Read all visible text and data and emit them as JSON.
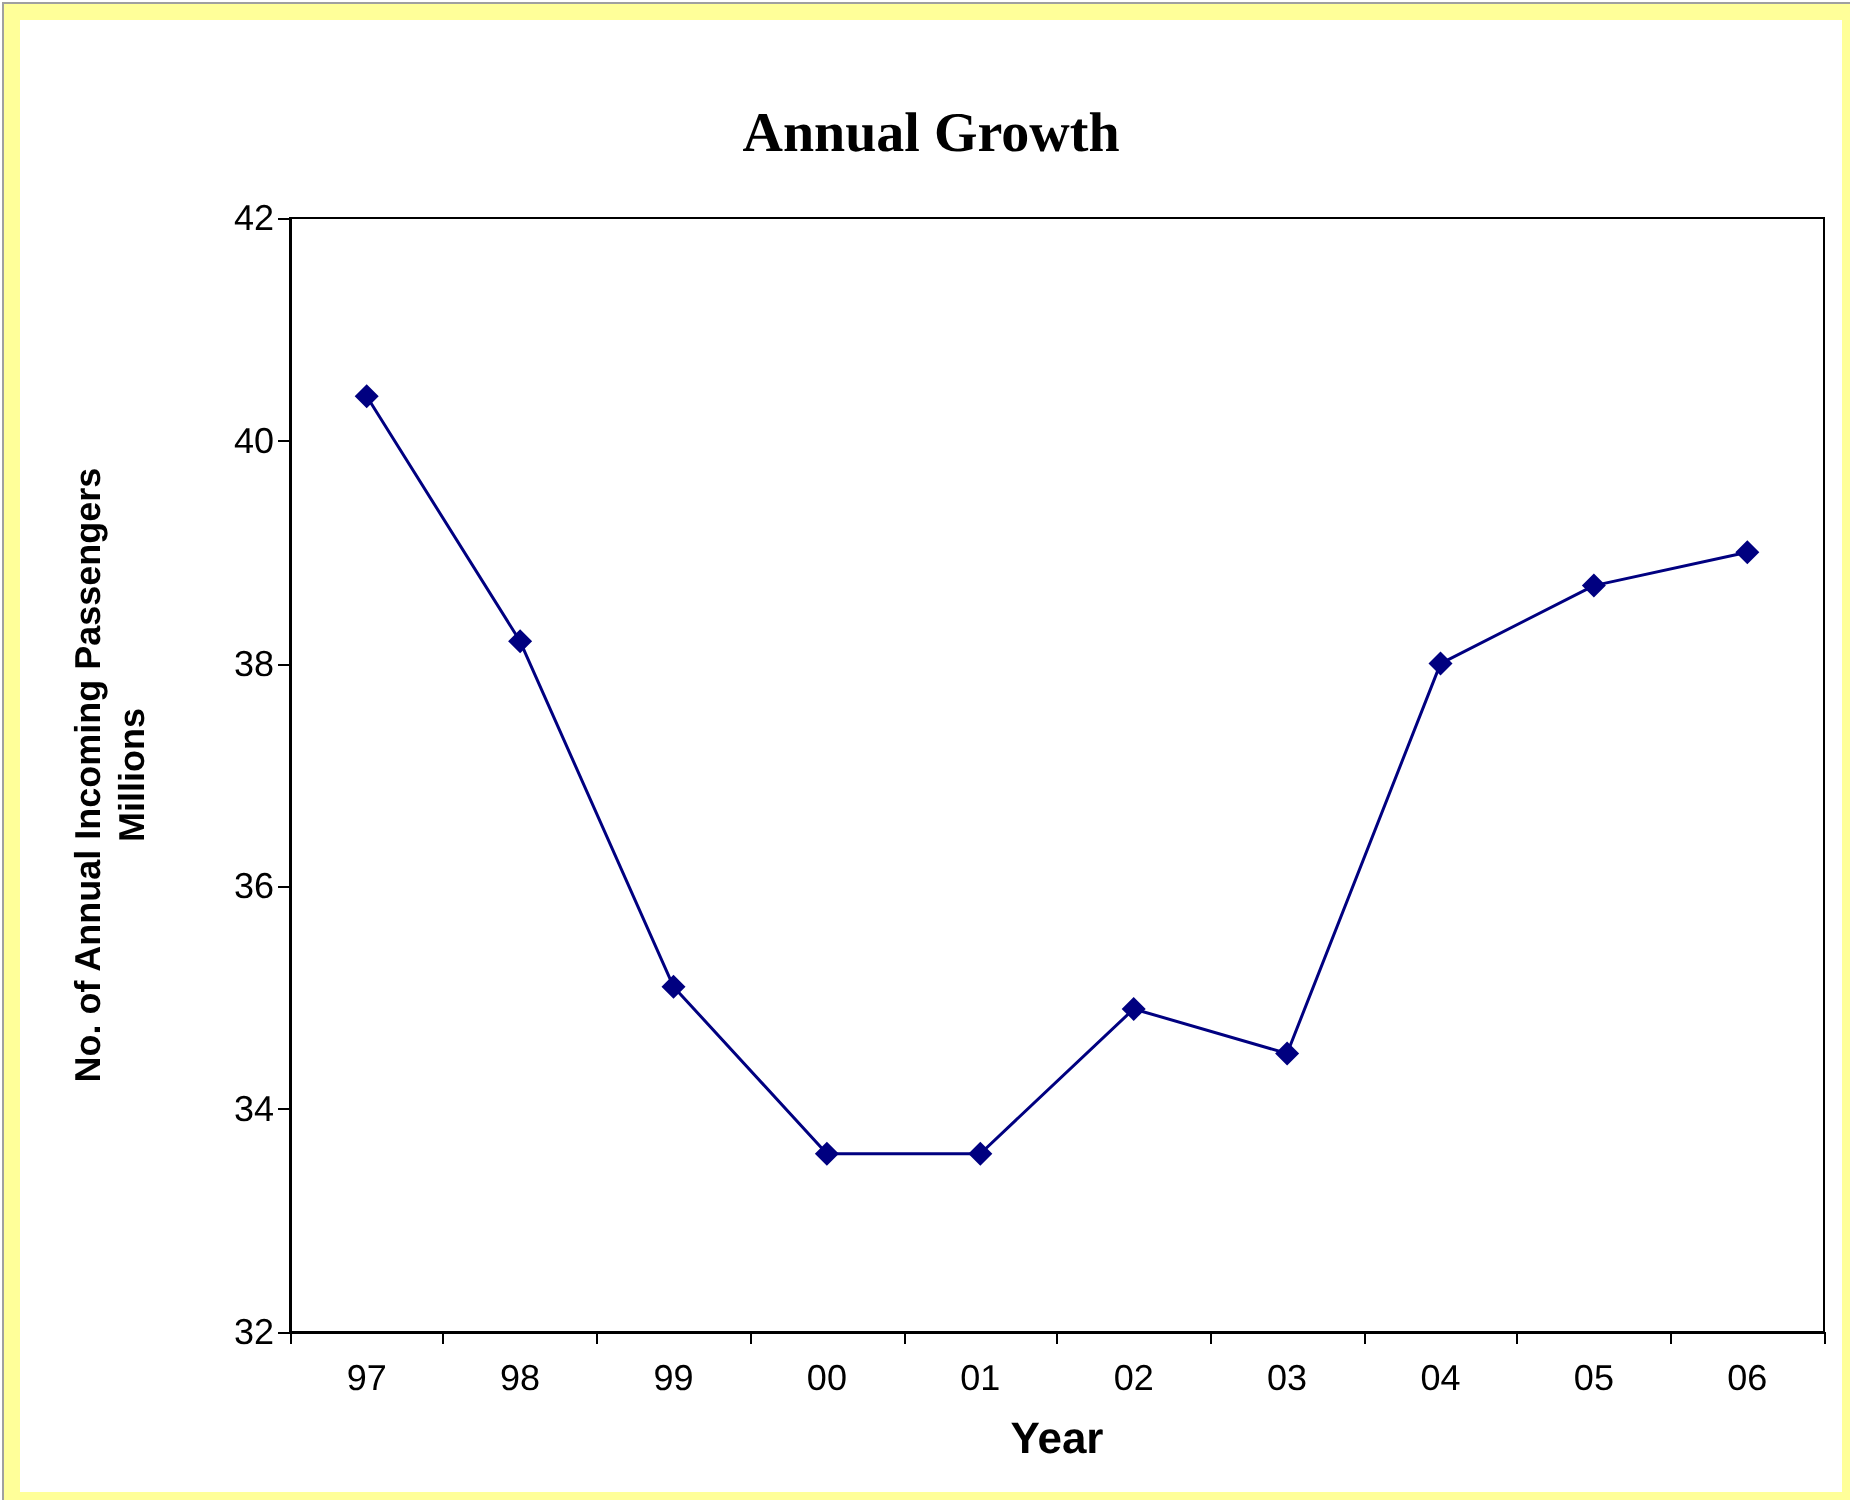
{
  "chart_data": {
    "type": "line",
    "title": "Annual Growth",
    "xlabel": "Year",
    "ylabel": "No. of Annual Incoming Passengers\nMillions",
    "categories": [
      "97",
      "98",
      "99",
      "00",
      "01",
      "02",
      "03",
      "04",
      "05",
      "06"
    ],
    "series": [
      {
        "color": "#000080",
        "values": [
          40.4,
          38.2,
          35.1,
          33.6,
          33.6,
          34.9,
          34.5,
          38.0,
          38.7,
          39.0
        ]
      }
    ],
    "ylim": [
      32,
      42
    ],
    "yticks": [
      32,
      34,
      36,
      38,
      40,
      42
    ],
    "grid": false,
    "marker": "diamond",
    "line_style": "solid"
  }
}
